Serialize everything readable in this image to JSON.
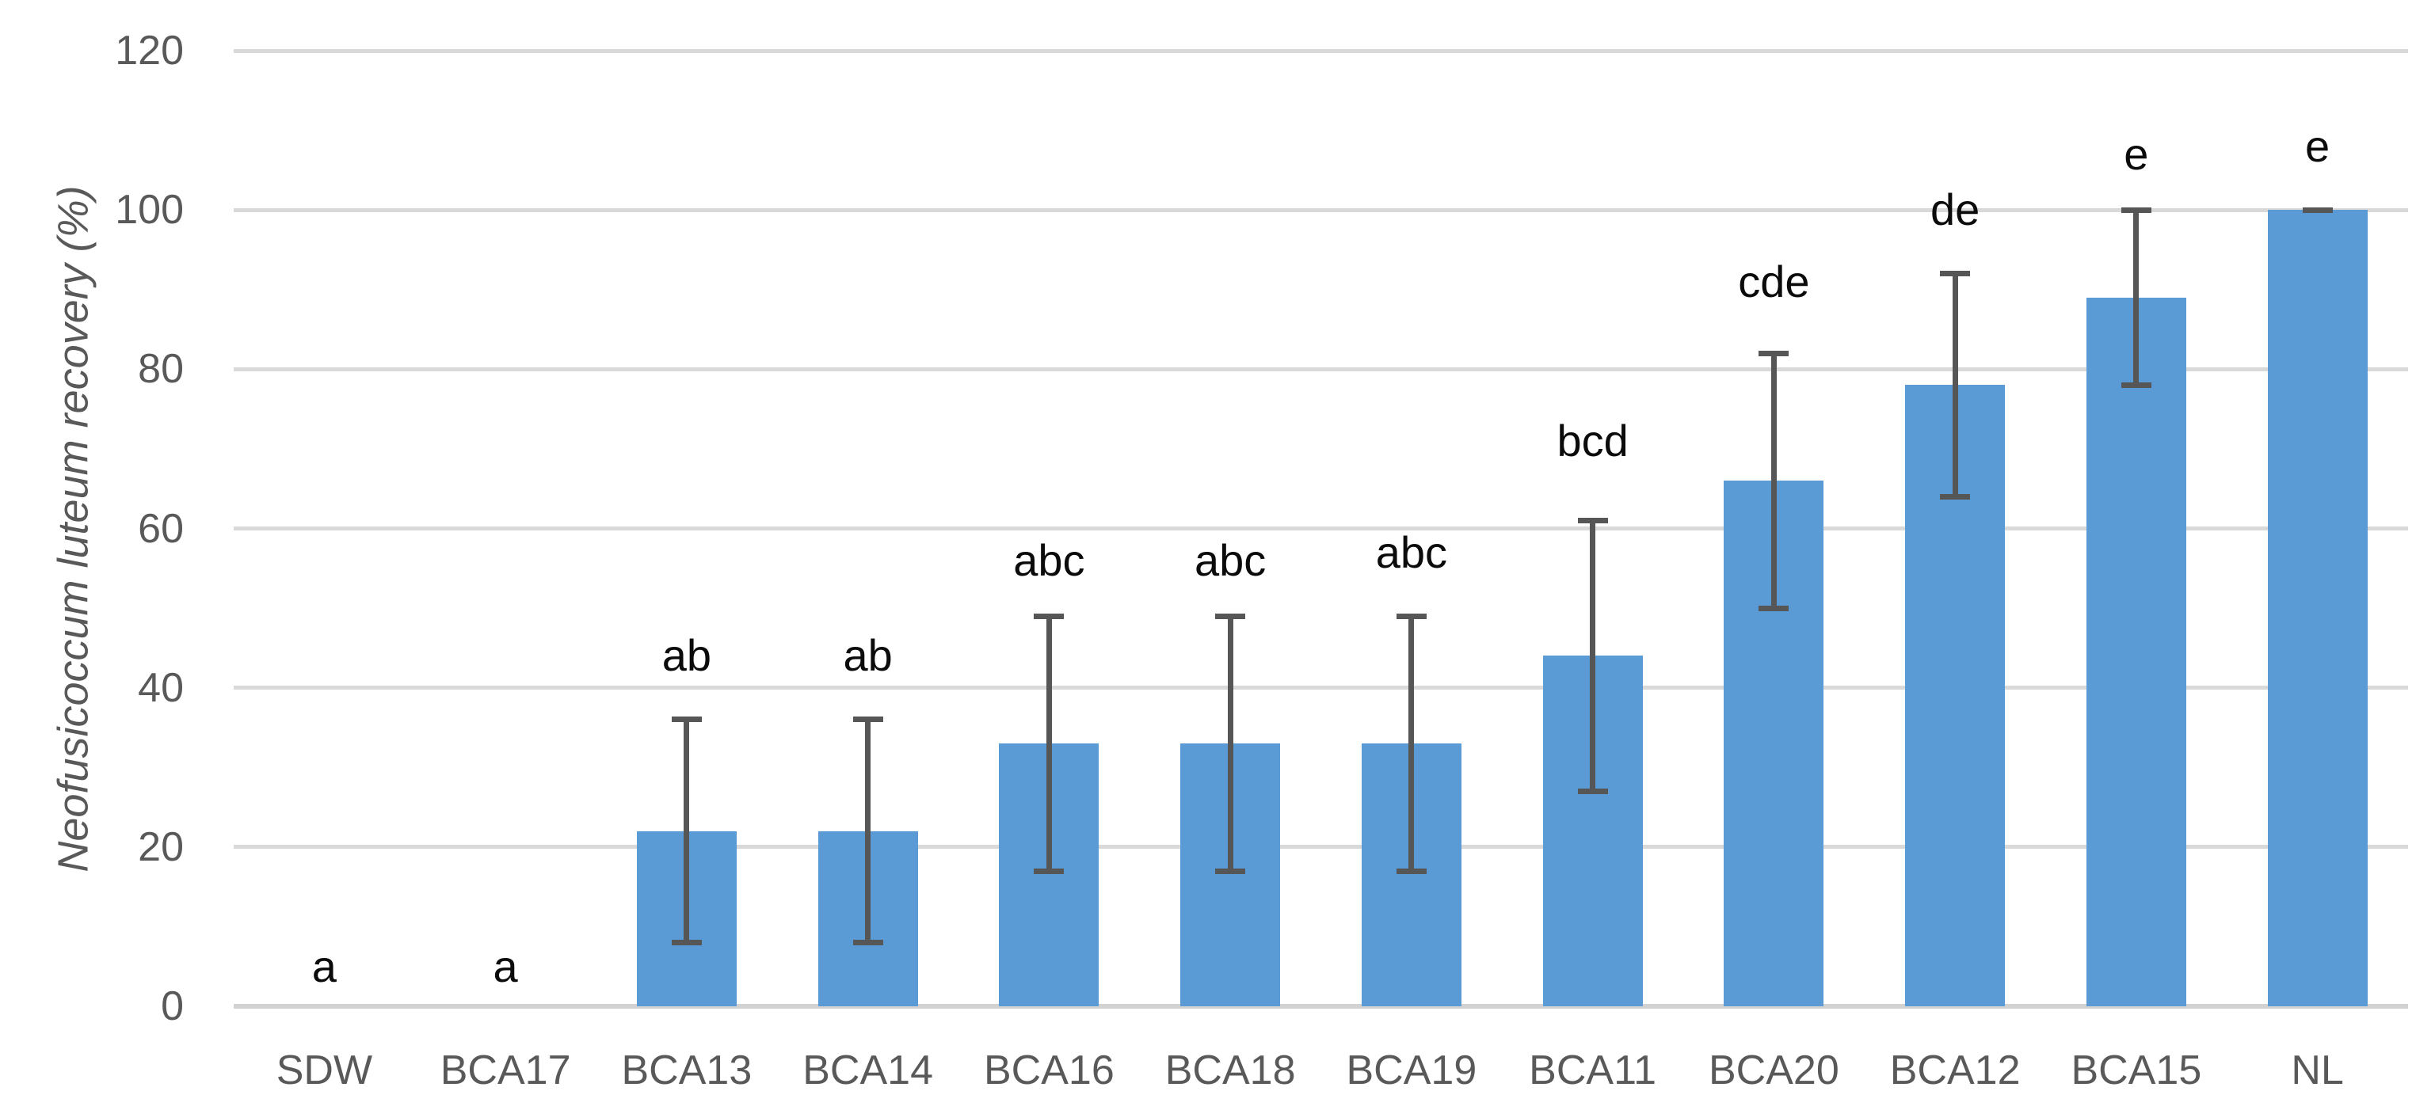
{
  "chart_data": {
    "type": "bar",
    "title": "",
    "ylabel": "Neofusicoccum luteum recovery (%)",
    "xlabel": "",
    "ylim": [
      0,
      120
    ],
    "yticks": [
      0,
      20,
      40,
      60,
      80,
      100,
      120
    ],
    "grid": true,
    "legend_position": "none",
    "bar_color": "#5b9bd5",
    "error_bar_color": "#565656",
    "gridline_color": "#d9d9d9",
    "axis_text_color": "#595959",
    "categories": [
      "SDW",
      "BCA17",
      "BCA13",
      "BCA14",
      "BCA16",
      "BCA18",
      "BCA19",
      "BCA11",
      "BCA20",
      "BCA12",
      "BCA15",
      "NL"
    ],
    "values": [
      0,
      0,
      22,
      22,
      33,
      33,
      33,
      44,
      66,
      78,
      89,
      100
    ],
    "error_low": [
      null,
      null,
      8,
      8,
      17,
      17,
      17,
      27,
      50,
      64,
      78,
      100
    ],
    "error_high": [
      null,
      null,
      36,
      36,
      49,
      49,
      49,
      61,
      82,
      92,
      100,
      100
    ],
    "sig_letters": [
      "a",
      "a",
      "ab",
      "ab",
      "abc",
      "abc",
      "abc",
      "bcd",
      "cde",
      "de",
      "e",
      "e"
    ],
    "sig_letter_value_y": [
      5,
      5,
      44,
      44,
      56,
      56,
      57,
      71,
      91,
      100,
      107,
      108
    ]
  }
}
